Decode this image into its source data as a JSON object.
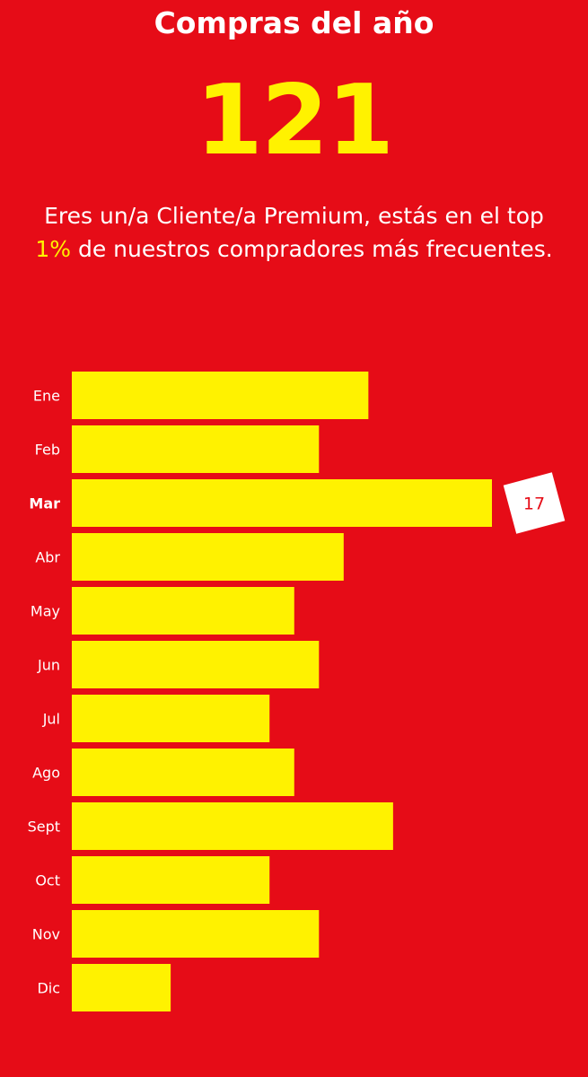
{
  "header": {
    "title": "Compras del año",
    "total": "121"
  },
  "message": {
    "line1": "Eres un/a Cliente/a Premium, estás en el top",
    "highlight": "1%",
    "line2_rest": " de nuestros compradores más frecuentes."
  },
  "colors": {
    "background": "#e60c17",
    "bar": "#fff200",
    "text": "#ffffff",
    "badge_bg": "#ffffff",
    "badge_text": "#e60c17"
  },
  "chart_data": {
    "type": "bar",
    "orientation": "horizontal",
    "categories": [
      "Ene",
      "Feb",
      "Mar",
      "Abr",
      "May",
      "Jun",
      "Jul",
      "Ago",
      "Sept",
      "Oct",
      "Nov",
      "Dic"
    ],
    "values": [
      12,
      10,
      17,
      11,
      9,
      10,
      8,
      9,
      13,
      8,
      10,
      4
    ],
    "highlight": {
      "category": "Mar",
      "label": "17"
    },
    "xlim": [
      0,
      17
    ],
    "grid": false,
    "legend": "none"
  }
}
